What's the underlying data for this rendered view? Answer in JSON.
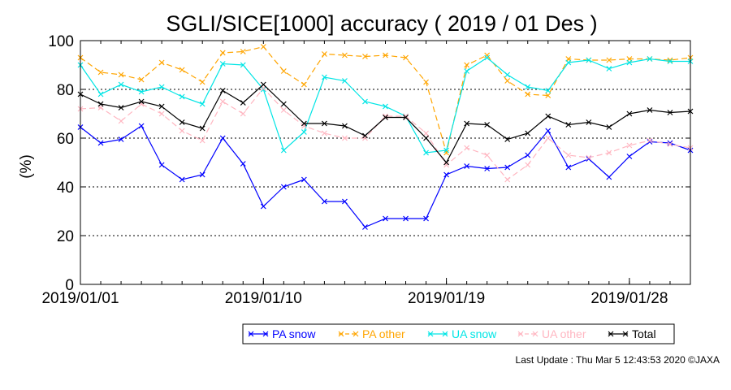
{
  "chart_data": {
    "type": "line",
    "title": "SGLI/SICE[1000] accuracy ( 2019 / 01 Des )",
    "xlabel": "",
    "ylabel": "(%)",
    "ylim": [
      0,
      100
    ],
    "yticks": [
      0,
      20,
      40,
      60,
      80,
      100
    ],
    "grid": "horizontal dotted at 20, 40, 60, 80",
    "legend_position": "bottom",
    "x": [
      "2019/01/01",
      "2019/01/02",
      "2019/01/03",
      "2019/01/04",
      "2019/01/05",
      "2019/01/06",
      "2019/01/07",
      "2019/01/08",
      "2019/01/09",
      "2019/01/10",
      "2019/01/11",
      "2019/01/12",
      "2019/01/13",
      "2019/01/14",
      "2019/01/15",
      "2019/01/16",
      "2019/01/17",
      "2019/01/18",
      "2019/01/19",
      "2019/01/20",
      "2019/01/21",
      "2019/01/22",
      "2019/01/23",
      "2019/01/24",
      "2019/01/25",
      "2019/01/26",
      "2019/01/27",
      "2019/01/28",
      "2019/01/29",
      "2019/01/30",
      "2019/01/31"
    ],
    "xtick_labels": [
      {
        "index": 0,
        "label": "2019/01/01"
      },
      {
        "index": 9,
        "label": "2019/01/10"
      },
      {
        "index": 18,
        "label": "2019/01/19"
      },
      {
        "index": 27,
        "label": "2019/01/28"
      }
    ],
    "series": [
      {
        "name": "PA snow",
        "color": "#0000ff",
        "dash": "solid",
        "values": [
          64.5,
          58,
          59.5,
          65,
          49,
          43,
          45,
          60,
          49.5,
          32,
          40,
          43,
          34,
          34,
          23.5,
          27,
          27,
          27,
          45,
          48.5,
          47.5,
          48,
          53,
          63,
          48,
          51.5,
          44,
          52.5,
          58.5,
          58,
          55
        ]
      },
      {
        "name": "PA other",
        "color": "#ffa500",
        "dash": "dashed",
        "values": [
          93,
          87,
          86,
          84,
          91,
          88,
          83,
          95,
          95.5,
          97.5,
          87.5,
          82,
          94.5,
          94,
          93.5,
          94,
          93,
          83,
          54,
          90,
          94,
          83.5,
          78,
          77.5,
          92.5,
          92,
          92,
          92.5,
          92.5,
          92,
          93
        ]
      },
      {
        "name": "UA snow",
        "color": "#00e5e5",
        "dash": "solid",
        "values": [
          90,
          78,
          82,
          79,
          81,
          77,
          74,
          90.5,
          90,
          80,
          55,
          62.5,
          85,
          83.5,
          75,
          73,
          69,
          54,
          55,
          87.5,
          93,
          86,
          81,
          79.5,
          91,
          92,
          88.5,
          91,
          92.5,
          91.5,
          91.5
        ]
      },
      {
        "name": "UA other",
        "color": "#ffb6c1",
        "dash": "dashed",
        "values": [
          72,
          72.5,
          67,
          74,
          70,
          63,
          59,
          75,
          70,
          80.5,
          71.5,
          65,
          62,
          60,
          60,
          69,
          69,
          62,
          49,
          56,
          53,
          43,
          49,
          60,
          53,
          52,
          54,
          57,
          59,
          57.5,
          56
        ]
      },
      {
        "name": "Total",
        "color": "#000000",
        "dash": "solid",
        "values": [
          78,
          74,
          72.5,
          75,
          73,
          66.5,
          64,
          79.5,
          74.5,
          82,
          74,
          66,
          66,
          65,
          61,
          68.5,
          68.5,
          60,
          50,
          66,
          65.5,
          59.5,
          62,
          69,
          65.5,
          66.5,
          64.5,
          70,
          71.5,
          70.5,
          71
        ]
      }
    ]
  },
  "footer": {
    "last_update": "Last Update : Thu Mar  5 12:43:53 2020  ©JAXA"
  }
}
